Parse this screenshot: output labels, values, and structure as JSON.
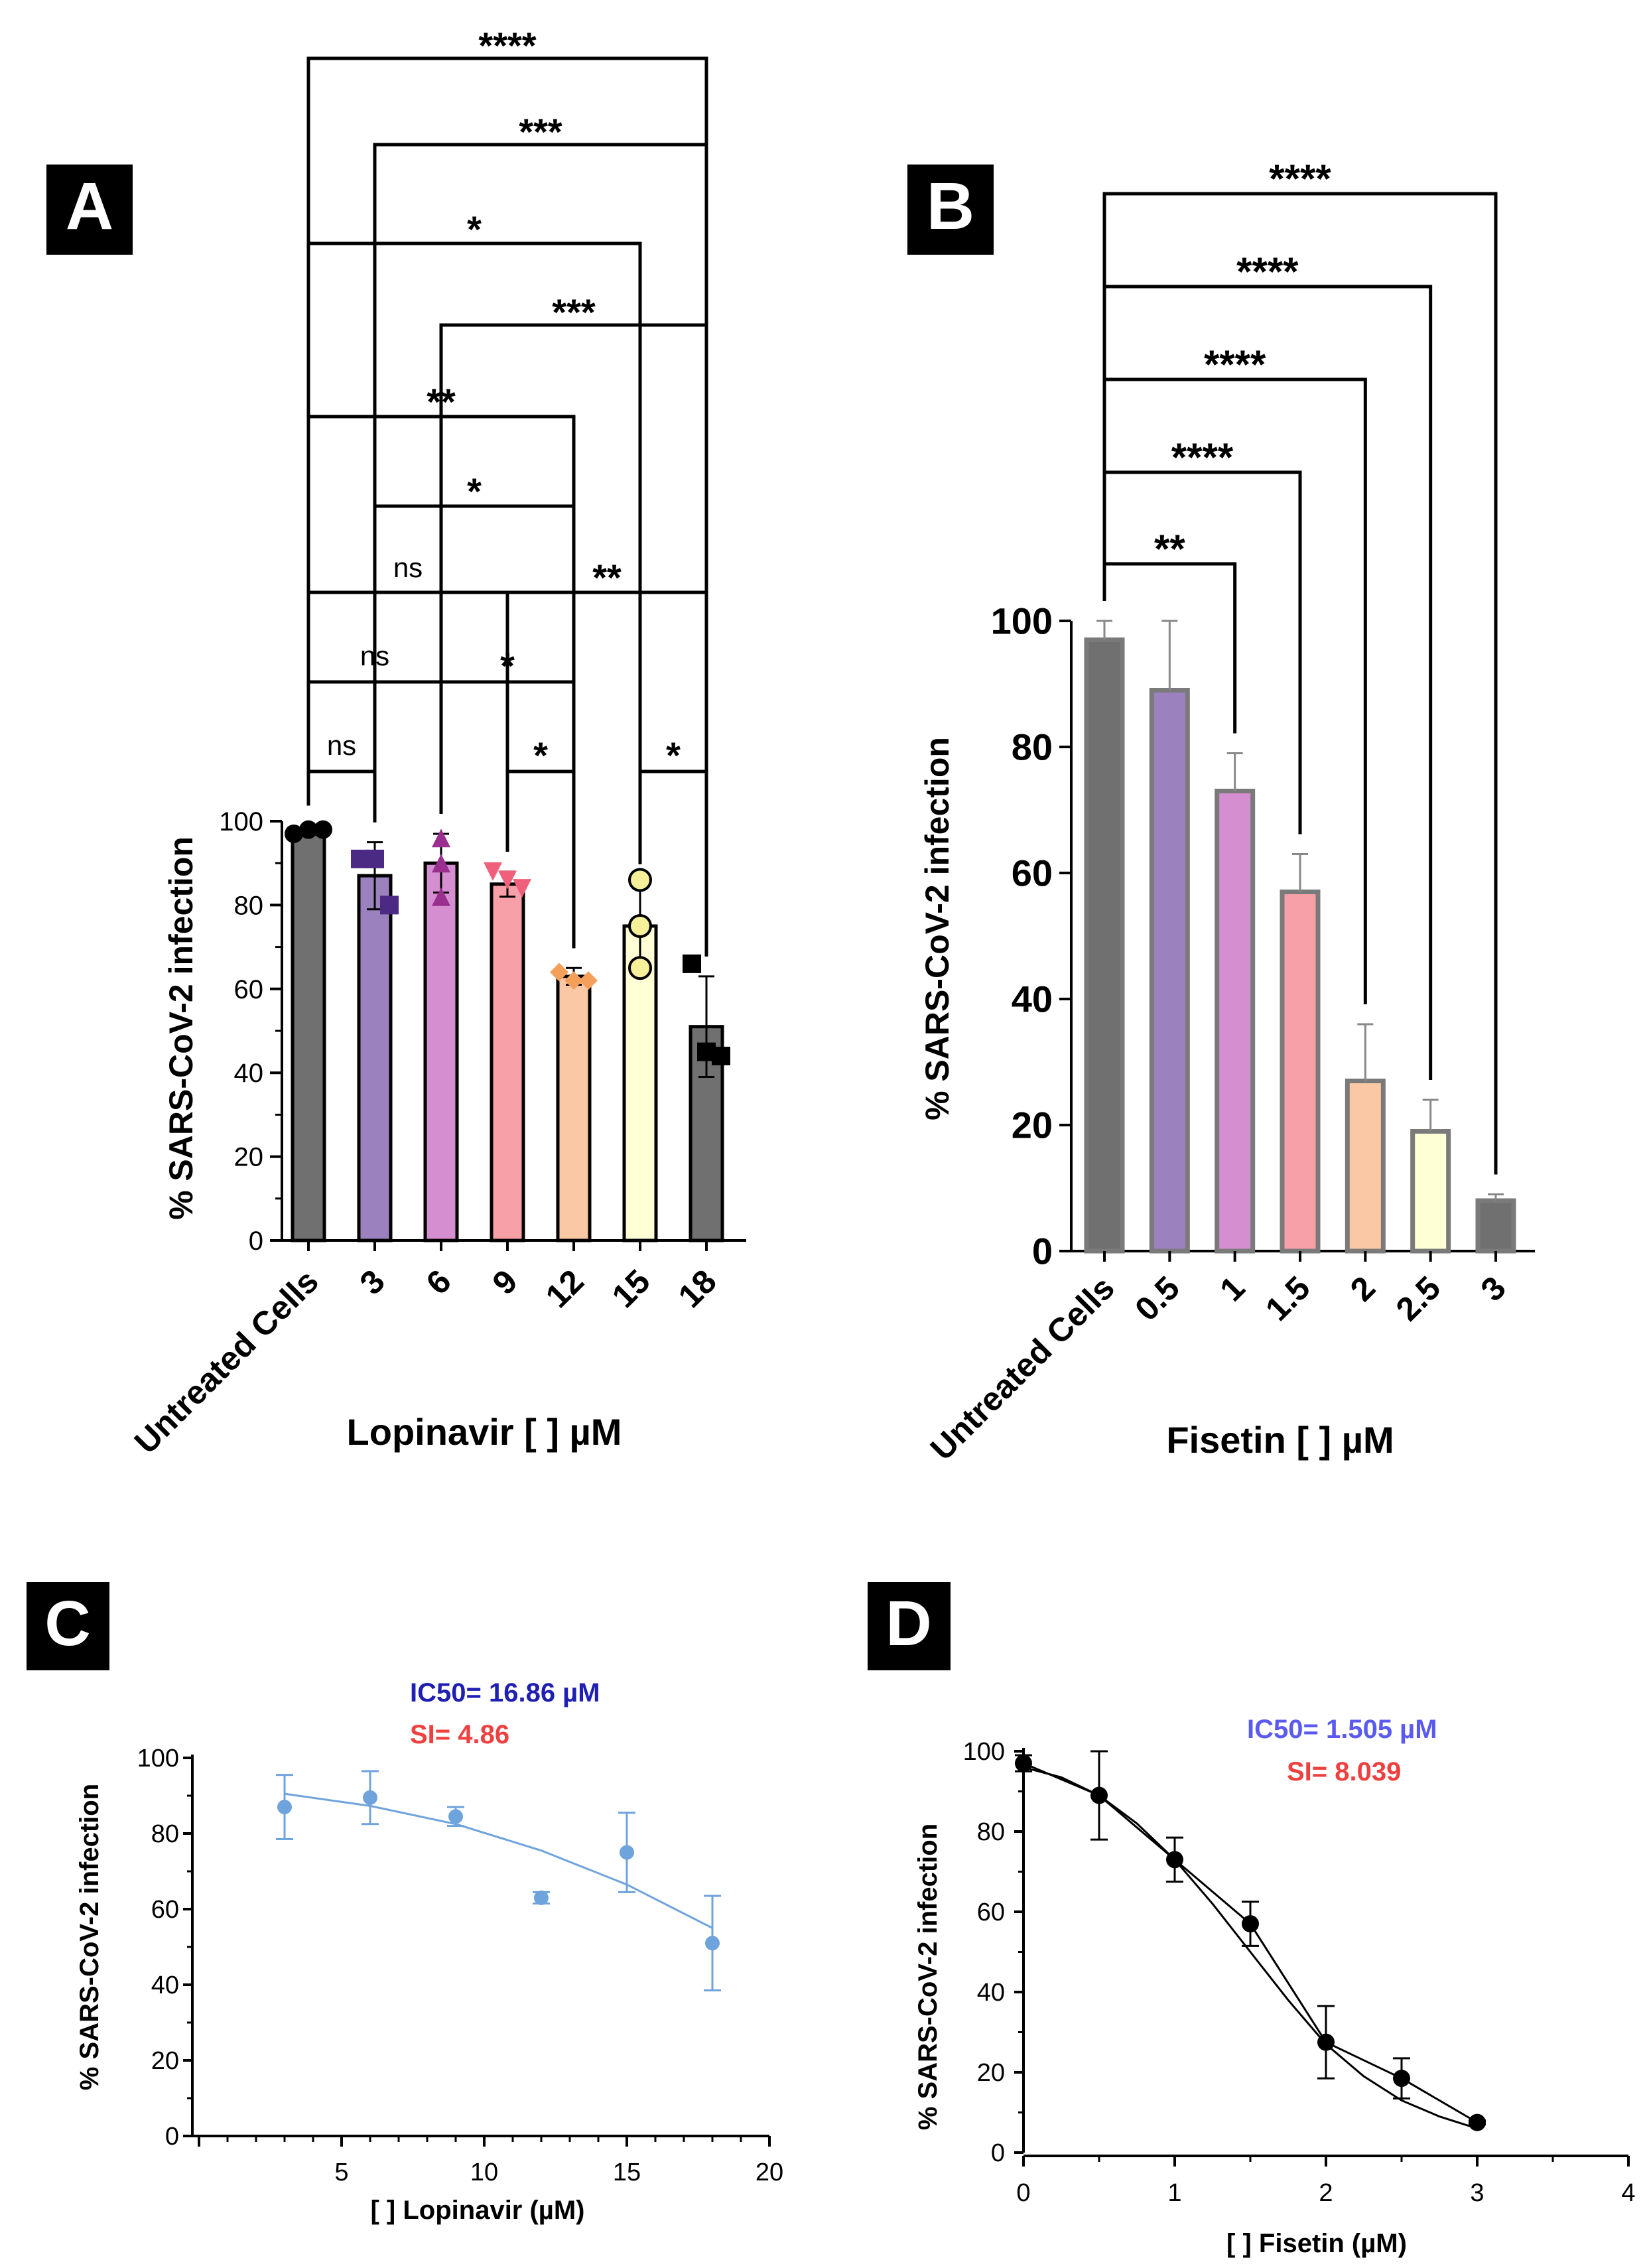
{
  "panels": [
    {
      "id": "A",
      "label": "A",
      "chart_data": {
        "type": "bar",
        "title": "",
        "xlabel": "Lopinavir [ ] µM",
        "ylabel": "% SARS-CoV-2 infection",
        "ylim": [
          0,
          100
        ],
        "yticks": [
          "0",
          "20",
          "40",
          "60",
          "80",
          "100"
        ],
        "categories": [
          "Untreated Cells",
          "3",
          "6",
          "9",
          "12",
          "15",
          "18"
        ],
        "values": [
          98,
          87,
          90,
          85,
          63,
          75,
          51
        ],
        "errors": [
          1,
          8,
          7,
          3,
          2,
          10,
          12
        ],
        "colors": [
          "#707070",
          "#9b82bf",
          "#d58ecf",
          "#f7a0a8",
          "#fbc8a5",
          "#ffffd6",
          "#707070"
        ],
        "points": [
          {
            "values": [
              97,
              98,
              98
            ],
            "shape": "circle",
            "color": "#000000"
          },
          {
            "values": [
              91,
              91,
              80
            ],
            "shape": "square",
            "color": "#4b2a83"
          },
          {
            "values": [
              96,
              90,
              82
            ],
            "shape": "triangle",
            "color": "#9b2f8f"
          },
          {
            "values": [
              88,
              86,
              84
            ],
            "shape": "triangle-down",
            "color": "#f0607a"
          },
          {
            "values": [
              64,
              62,
              62
            ],
            "shape": "diamond",
            "color": "#f5a05a"
          },
          {
            "values": [
              86,
              75,
              65
            ],
            "shape": "circle-open",
            "color": "#f6f09a"
          },
          {
            "values": [
              66,
              45,
              44
            ],
            "shape": "square",
            "color": "#000000"
          }
        ],
        "comparisons": [
          {
            "from": 0,
            "to": 6,
            "label": "****"
          },
          {
            "from": 1,
            "to": 6,
            "label": "***"
          },
          {
            "from": 0,
            "to": 5,
            "label": "*"
          },
          {
            "from": 2,
            "to": 6,
            "label": "***"
          },
          {
            "from": 0,
            "to": 4,
            "label": "**"
          },
          {
            "from": 1,
            "to": 4,
            "label": "*"
          },
          {
            "from": 0,
            "to": 3,
            "label": "ns"
          },
          {
            "from": 3,
            "to": 6,
            "label": "**"
          },
          {
            "from": 0,
            "to": 2,
            "label": "ns"
          },
          {
            "from": 2,
            "to": 4,
            "label": "*"
          },
          {
            "from": 0,
            "to": 1,
            "label": "ns"
          },
          {
            "from": 3,
            "to": 4,
            "label": "*"
          },
          {
            "from": 5,
            "to": 6,
            "label": "*"
          }
        ]
      }
    },
    {
      "id": "B",
      "label": "B",
      "chart_data": {
        "type": "bar",
        "title": "",
        "xlabel": "Fisetin [ ] µM",
        "ylabel": "% SARS-CoV-2 infection",
        "ylim": [
          0,
          100
        ],
        "yticks": [
          "0",
          "20",
          "40",
          "60",
          "80",
          "100"
        ],
        "categories": [
          "Untreated Cells",
          "0.5",
          "1",
          "1.5",
          "2",
          "2.5",
          "3"
        ],
        "values": [
          97,
          89,
          73,
          57,
          27,
          19,
          8
        ],
        "errors": [
          3,
          11,
          6,
          6,
          9,
          5,
          1
        ],
        "colors": [
          "#707070",
          "#9b82bf",
          "#d58ecf",
          "#f7a0a8",
          "#fbc8a5",
          "#ffffd6",
          "#707070"
        ],
        "comparisons": [
          {
            "from": 0,
            "to": 6,
            "label": "****"
          },
          {
            "from": 0,
            "to": 5,
            "label": "****"
          },
          {
            "from": 0,
            "to": 4,
            "label": "****"
          },
          {
            "from": 0,
            "to": 3,
            "label": "****"
          },
          {
            "from": 0,
            "to": 2,
            "label": "**"
          }
        ]
      }
    },
    {
      "id": "C",
      "label": "C",
      "chart_data": {
        "type": "scatter",
        "title": "",
        "xlabel": "[ ] Lopinavir (µM)",
        "ylabel": "% SARS-CoV-2 infection",
        "xlim": [
          0,
          20
        ],
        "ylim": [
          0,
          100
        ],
        "xticks": [
          "5",
          "10",
          "15",
          "20"
        ],
        "yticks": [
          "0",
          "20",
          "40",
          "60",
          "80",
          "100"
        ],
        "x": [
          3,
          6,
          9,
          12,
          15,
          18
        ],
        "y": [
          87,
          89.5,
          84.5,
          63,
          75,
          51
        ],
        "errors": [
          8.5,
          7,
          2.5,
          1.5,
          10.5,
          12.5
        ],
        "fit": {
          "x": [
            3,
            6,
            9,
            12,
            15,
            18
          ],
          "y": [
            90.5,
            87.3,
            82.5,
            75.5,
            66.5,
            55
          ]
        },
        "color": "#6fa3dc",
        "annotations": {
          "ic50": "IC50= 16.86 µM",
          "si": "SI= 4.86"
        }
      }
    },
    {
      "id": "D",
      "label": "D",
      "chart_data": {
        "type": "scatter",
        "title": "",
        "xlabel": "[ ] Fisetin (µM)",
        "ylabel": "% SARS-CoV-2 infection",
        "xlim": [
          0,
          4
        ],
        "ylim": [
          0,
          100
        ],
        "xticks": [
          "0",
          "1",
          "2",
          "3",
          "4"
        ],
        "yticks": [
          "0",
          "20",
          "40",
          "60",
          "80",
          "100"
        ],
        "x": [
          0,
          0.5,
          1,
          1.5,
          2,
          2.5,
          3
        ],
        "y": [
          97,
          89,
          73,
          57,
          27.5,
          18.5,
          7.5
        ],
        "errors": [
          2,
          11,
          5.5,
          5.5,
          9,
          5,
          0.5
        ],
        "fit": {
          "x": [
            0,
            0.25,
            0.5,
            0.75,
            1,
            1.25,
            1.5,
            1.75,
            2,
            2.25,
            2.5,
            2.75,
            3
          ],
          "y": [
            96,
            93.5,
            89,
            82,
            73,
            62,
            50,
            38,
            27,
            19,
            13,
            9,
            6
          ]
        },
        "color": "#000000",
        "annotations": {
          "ic50": "IC50= 1.505 µM",
          "si": "SI=  8.039"
        }
      }
    }
  ]
}
